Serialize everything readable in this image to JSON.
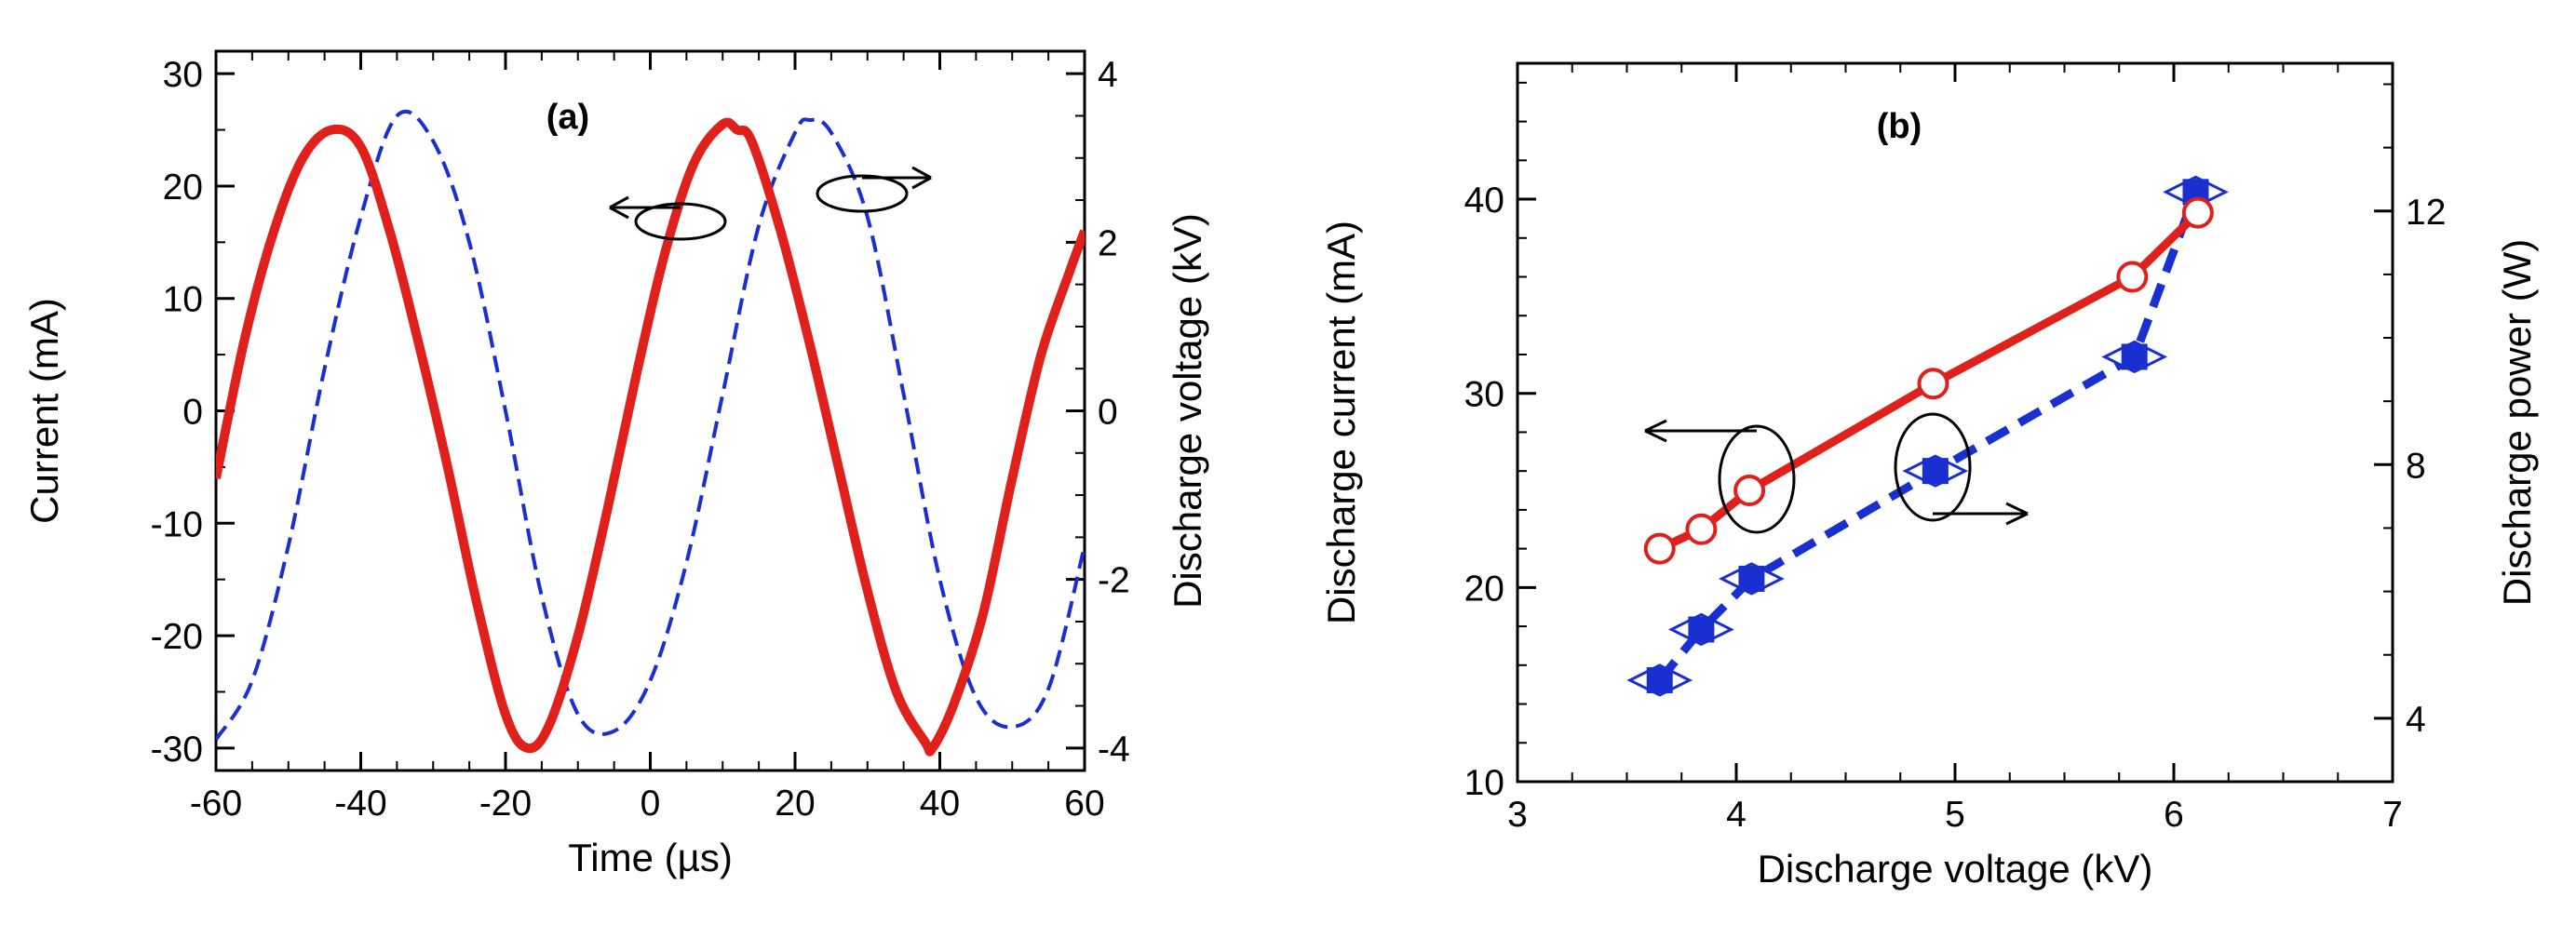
{
  "chart_data": [
    {
      "type": "line",
      "panel_label": "(a)",
      "title": "",
      "xlabel": "Time (µs)",
      "ylabel_left": "Current (mA)",
      "ylabel_right": "Discharge voltage (kV)",
      "xlim": [
        -60,
        60
      ],
      "ylim_left": [
        -32,
        32
      ],
      "ylim_right": [
        -4.267,
        4.267
      ],
      "xticks": [
        "-60",
        "-40",
        "-20",
        "0",
        "20",
        "40",
        "60"
      ],
      "xtick_values": [
        -60,
        -40,
        -20,
        0,
        20,
        40,
        60
      ],
      "yticks_left": [
        "30",
        "20",
        "10",
        "0",
        "-10",
        "-20",
        "-30"
      ],
      "ytick_values_left": [
        30,
        20,
        10,
        0,
        -10,
        -20,
        -30
      ],
      "yticks_right": [
        "4",
        "2",
        "0",
        "-2",
        "-4"
      ],
      "ytick_values_right": [
        4,
        2,
        0,
        -2,
        -4
      ],
      "series": [
        {
          "name": "Current (mA)",
          "axis": "left",
          "style": "solid",
          "color": "#e0201b",
          "x": [
            -60,
            -56,
            -52,
            -48,
            -44,
            -40,
            -36,
            -32,
            -28,
            -24,
            -20,
            -17,
            -14,
            -10,
            -6,
            -2,
            2,
            6,
            10,
            12,
            14,
            18,
            22,
            26,
            30,
            34,
            38,
            39,
            42,
            46,
            50,
            54,
            58,
            60
          ],
          "y": [
            -6,
            6.5,
            16,
            22.5,
            25,
            23.5,
            16,
            6,
            -5,
            -17,
            -27,
            -30,
            -28,
            -20,
            -9,
            3,
            14,
            22,
            25.5,
            25,
            24,
            16,
            6,
            -5,
            -16,
            -25,
            -29.5,
            -30,
            -26,
            -18,
            -6,
            5,
            12.5,
            16
          ]
        },
        {
          "name": "Discharge voltage (kV)",
          "axis": "right",
          "style": "dashed",
          "color": "#1a2fd0",
          "x": [
            -60,
            -55,
            -50,
            -45,
            -40,
            -35,
            -30,
            -25,
            -20,
            -15,
            -10,
            -5,
            0,
            5,
            10,
            15,
            20,
            22,
            25,
            30,
            35,
            40,
            45,
            50,
            55,
            60
          ],
          "y": [
            -3.9,
            -3.2,
            -1.6,
            0.5,
            2.3,
            3.5,
            3.2,
            2.0,
            0.0,
            -2.2,
            -3.6,
            -3.8,
            -3.2,
            -1.8,
            0.2,
            2.2,
            3.3,
            3.45,
            3.3,
            2.3,
            0.2,
            -2.0,
            -3.4,
            -3.75,
            -3.3,
            -1.6
          ]
        }
      ],
      "annotations": [
        "left-arrow ellipse marks current curve",
        "right-arrow ellipse marks voltage curve"
      ]
    },
    {
      "type": "line",
      "panel_label": "(b)",
      "title": "",
      "xlabel": "Discharge voltage (kV)",
      "ylabel_left": "Discharge current (mA)",
      "ylabel_right": "Discharge power (W)",
      "xlim": [
        3,
        7
      ],
      "ylim_left": [
        10,
        47
      ],
      "ylim_right": [
        3,
        14.33
      ],
      "xticks": [
        "3",
        "4",
        "5",
        "6",
        "7"
      ],
      "xtick_values": [
        3,
        4,
        5,
        6,
        7
      ],
      "yticks_left": [
        "10",
        "20",
        "30",
        "40"
      ],
      "ytick_values_left": [
        10,
        20,
        30,
        40
      ],
      "yticks_right": [
        "4",
        "8",
        "12"
      ],
      "ytick_values_right": [
        4,
        8,
        12
      ],
      "series": [
        {
          "name": "Discharge current (mA)",
          "axis": "left",
          "style": "solid",
          "marker": "open-circle",
          "color": "#e0201b",
          "x": [
            3.65,
            3.84,
            4.06,
            4.9,
            5.81,
            6.11
          ],
          "y": [
            22.0,
            23.0,
            25.0,
            30.5,
            36.0,
            39.3
          ]
        },
        {
          "name": "Discharge power (W)",
          "axis": "right",
          "style": "dashed",
          "marker": "filled-square-diamond",
          "color": "#1a2fd0",
          "x": [
            3.65,
            3.84,
            4.07,
            4.91,
            5.82,
            6.1
          ],
          "y": [
            4.6,
            5.4,
            6.2,
            7.9,
            9.7,
            12.3
          ]
        }
      ],
      "annotations": [
        "left-arrow ellipse marks current curve",
        "right-arrow ellipse marks power curve"
      ]
    }
  ]
}
